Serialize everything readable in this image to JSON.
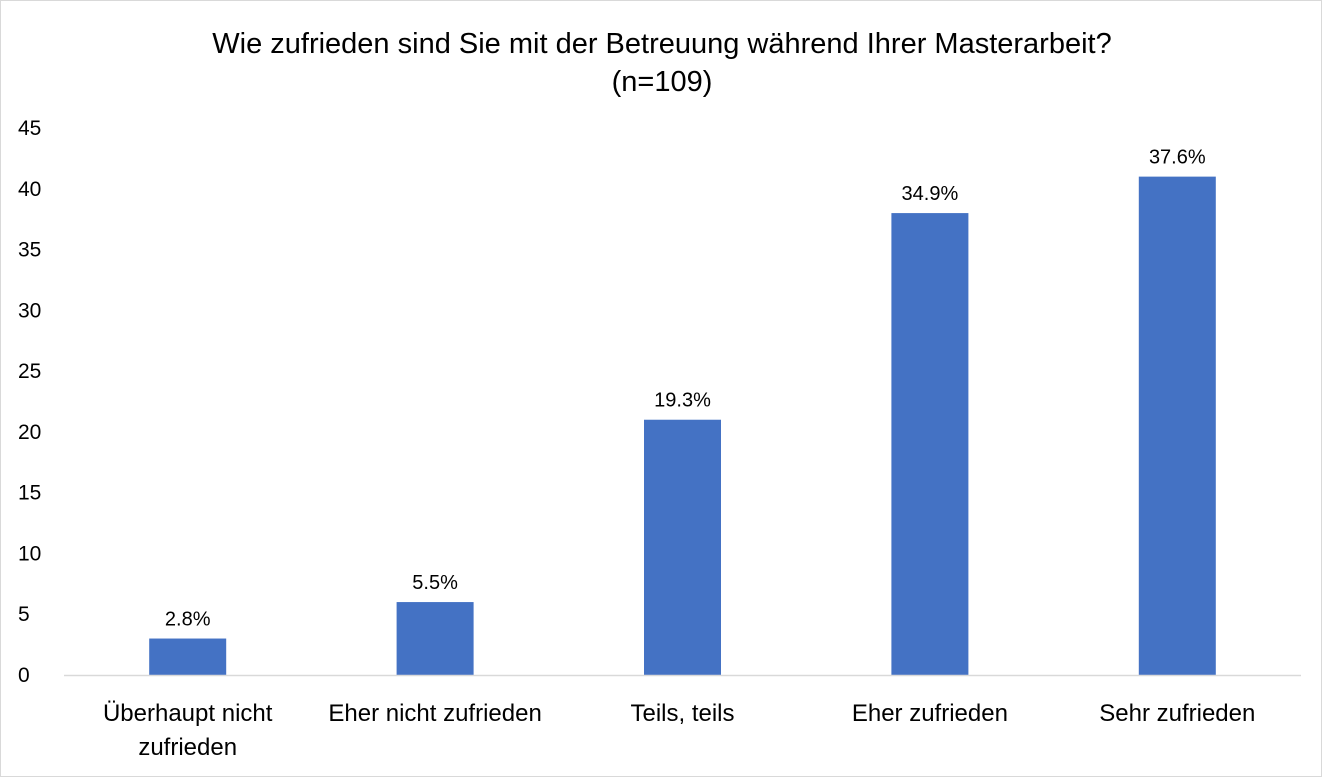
{
  "chart_data": {
    "type": "bar",
    "title": "Wie zufrieden sind Sie mit der Betreuung während Ihrer Masterarbeit?",
    "subtitle": "(n=109)",
    "xlabel": "",
    "ylabel": "",
    "categories": [
      "Überhaupt nicht zufrieden",
      "Eher nicht zufrieden",
      "Teils, teils",
      "Eher zufrieden",
      "Sehr zufrieden"
    ],
    "category_label_lines": [
      [
        "Überhaupt nicht",
        "zufrieden"
      ],
      [
        "Eher nicht zufrieden"
      ],
      [
        "Teils, teils"
      ],
      [
        "Eher zufrieden"
      ],
      [
        "Sehr zufrieden"
      ]
    ],
    "values": [
      3,
      6,
      21,
      38,
      41
    ],
    "data_labels": [
      "2.8%",
      "5.5%",
      "19.3%",
      "34.9%",
      "37.6%"
    ],
    "ylim": [
      0,
      45
    ],
    "yticks": [
      0,
      5,
      10,
      15,
      20,
      25,
      30,
      35,
      40,
      45
    ],
    "grid": false,
    "legend": "none",
    "colors": {
      "bar": "#4472C4",
      "axis": "#d9d9d9",
      "text": "#000000"
    }
  }
}
